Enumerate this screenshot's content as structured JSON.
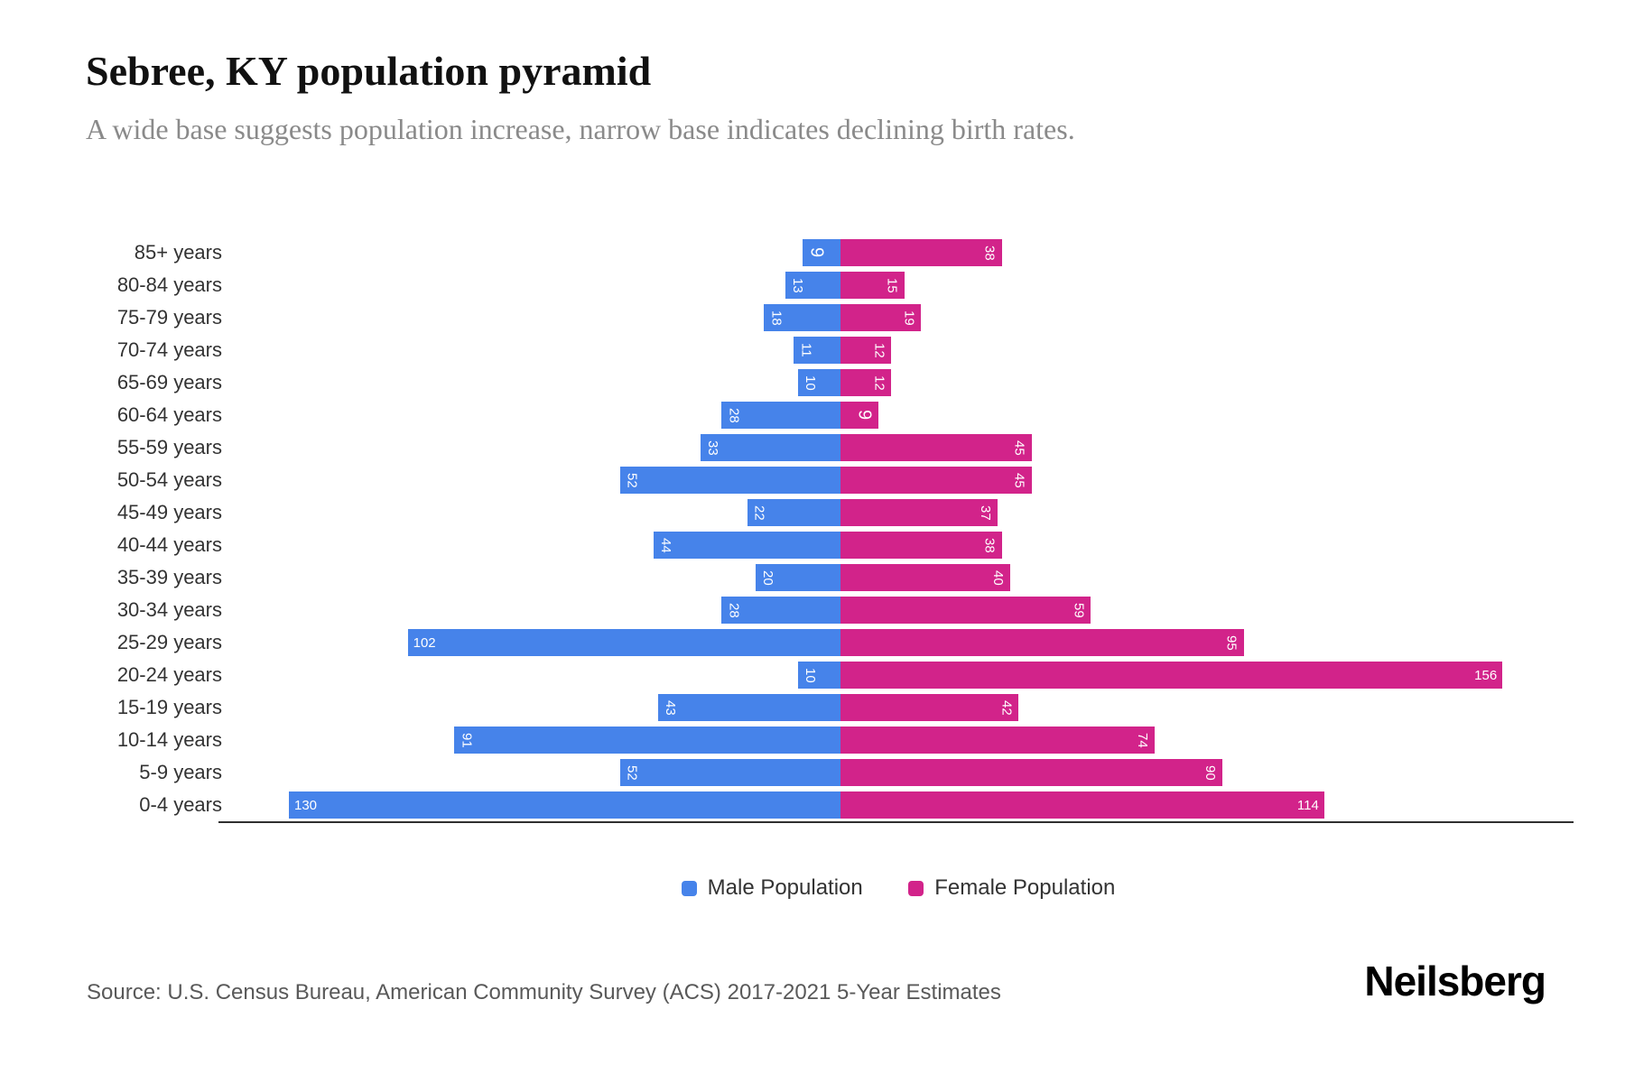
{
  "header": {
    "title": "Sebree, KY population pyramid",
    "subtitle": "A wide base suggests population increase, narrow base indicates declining birth rates."
  },
  "chart_data": {
    "type": "bar",
    "variant": "population-pyramid",
    "orientation": "horizontal",
    "categories": [
      "85+ years",
      "80-84 years",
      "75-79 years",
      "70-74 years",
      "65-69 years",
      "60-64 years",
      "55-59 years",
      "50-54 years",
      "45-49 years",
      "40-44 years",
      "35-39 years",
      "30-34 years",
      "25-29 years",
      "20-24 years",
      "15-19 years",
      "10-14 years",
      "5-9 years",
      "0-4 years"
    ],
    "series": [
      {
        "name": "Male Population",
        "color": "#4683EA",
        "direction": "left",
        "values": [
          9,
          13,
          18,
          11,
          10,
          28,
          33,
          52,
          22,
          44,
          20,
          28,
          102,
          10,
          43,
          91,
          52,
          130
        ]
      },
      {
        "name": "Female Population",
        "color": "#D2238A",
        "direction": "right",
        "values": [
          38,
          15,
          19,
          12,
          12,
          9,
          45,
          45,
          37,
          38,
          40,
          59,
          95,
          156,
          42,
          74,
          90,
          114
        ]
      }
    ],
    "xlim": [
      0,
      160
    ],
    "grid": false,
    "value_labels": "inside outer end, white, rotated 90deg when value < 100, horizontal when >= 100",
    "legend_position": "bottom-center"
  },
  "legend": {
    "male_label": "Male Population",
    "female_label": "Female Population"
  },
  "footer": {
    "source": "Source: U.S. Census Bureau, American Community Survey (ACS) 2017-2021 5-Year Estimates",
    "logo": "Neilsberg"
  },
  "colors": {
    "male": "#4683EA",
    "female": "#D2238A",
    "title": "#111111",
    "subtitle": "#8a8a8a",
    "axis": "#2f2f2f",
    "age_label": "#333333",
    "source": "#595959",
    "background": "#ffffff"
  }
}
